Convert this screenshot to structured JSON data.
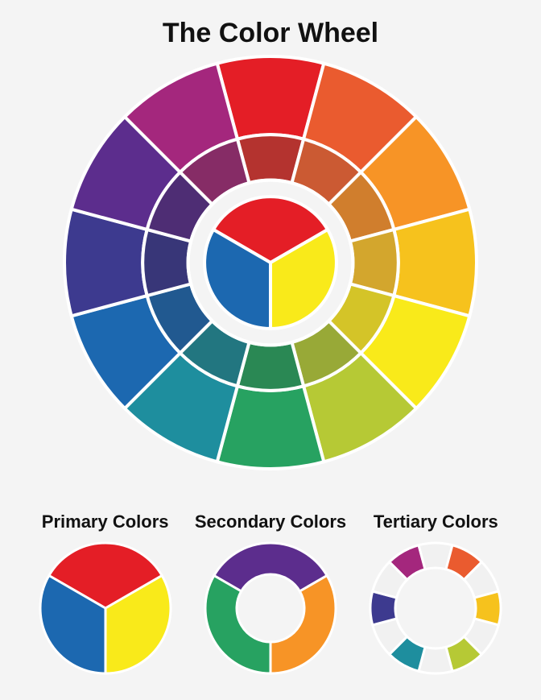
{
  "background_color": "#f4f4f4",
  "title": {
    "text": "The Color Wheel",
    "fontsize": 34,
    "color": "#111111"
  },
  "main_wheel": {
    "type": "color-wheel",
    "diameter": 520,
    "stroke": "#ffffff",
    "stroke_width": 4,
    "outer_colors": [
      "#e41e26",
      "#ea5b2f",
      "#f79426",
      "#f6c21d",
      "#f9ea1a",
      "#b6c935",
      "#27a261",
      "#1e8e9e",
      "#1c68b0",
      "#3d3a8f",
      "#5c2d8d",
      "#a4277d"
    ],
    "middle_colors": [
      "#b4332f",
      "#cb5a33",
      "#d07e2d",
      "#d3a62d",
      "#d4c428",
      "#98a937",
      "#2a8854",
      "#227680",
      "#215990",
      "#383678",
      "#4e2d74",
      "#862c66"
    ],
    "center_colors": {
      "top": "#e41e26",
      "left": "#1c68b0",
      "right": "#f9ea1a"
    }
  },
  "primary": {
    "label": "Primary Colors",
    "label_fontsize": 22,
    "diameter": 168,
    "stroke": "#ffffff",
    "stroke_width": 3,
    "colors": {
      "top": "#e41e26",
      "left": "#1c68b0",
      "right": "#f9ea1a"
    }
  },
  "secondary": {
    "label": "Secondary Colors",
    "label_fontsize": 22,
    "diameter": 168,
    "inner_hole": 84,
    "stroke": "#ffffff",
    "stroke_width": 3,
    "colors": {
      "top": "#5c2d8d",
      "right": "#f79426",
      "bottom": "#27a261"
    }
  },
  "tertiary": {
    "label": "Tertiary Colors",
    "label_fontsize": 22,
    "diameter": 168,
    "inner_hole": 100,
    "stroke": "#ffffff",
    "stroke_width": 3,
    "empty_color": "#f1f1f1",
    "segments": [
      {
        "color": "#a4277d",
        "filled": true
      },
      {
        "color": "#f1f1f1",
        "filled": false
      },
      {
        "color": "#ea5b2f",
        "filled": true
      },
      {
        "color": "#f1f1f1",
        "filled": false
      },
      {
        "color": "#f6c21d",
        "filled": true
      },
      {
        "color": "#f1f1f1",
        "filled": false
      },
      {
        "color": "#b6c935",
        "filled": true
      },
      {
        "color": "#f1f1f1",
        "filled": false
      },
      {
        "color": "#1e8e9e",
        "filled": true
      },
      {
        "color": "#f1f1f1",
        "filled": false
      },
      {
        "color": "#3d3a8f",
        "filled": true
      },
      {
        "color": "#f1f1f1",
        "filled": false
      }
    ]
  }
}
